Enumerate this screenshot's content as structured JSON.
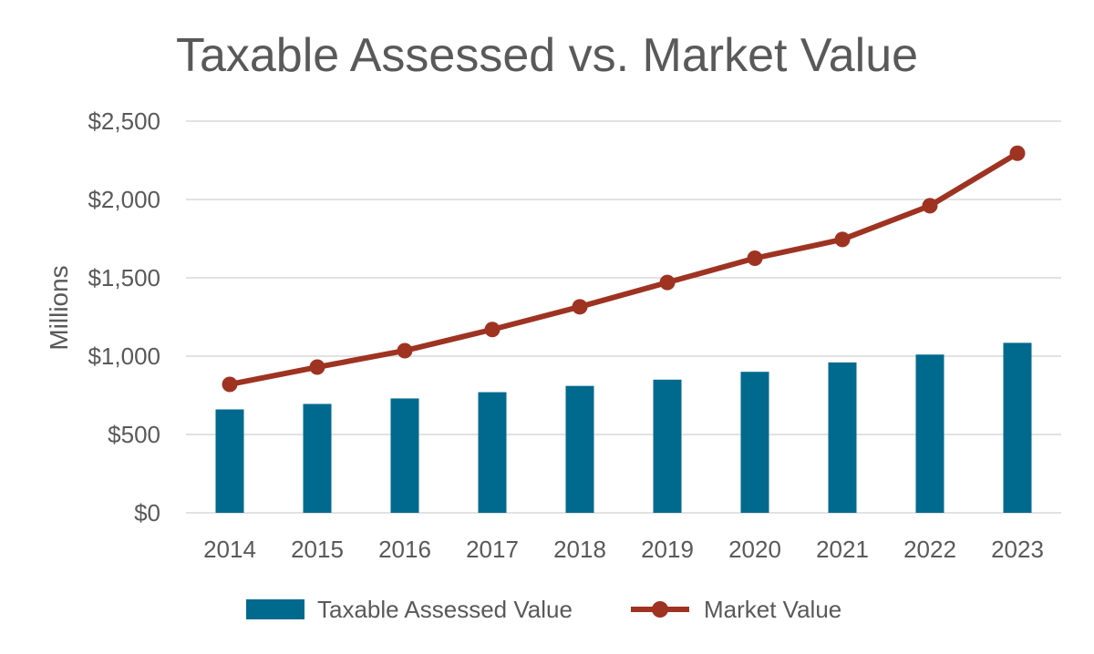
{
  "chart_data": {
    "type": "bar",
    "title": "Taxable Assessed vs. Market Value",
    "xlabel": "",
    "ylabel": "Millions",
    "categories": [
      "2014",
      "2015",
      "2016",
      "2017",
      "2018",
      "2019",
      "2020",
      "2021",
      "2022",
      "2023"
    ],
    "ylim": [
      0,
      2500
    ],
    "yticks": [
      0,
      500,
      1000,
      1500,
      2000,
      2500
    ],
    "ytick_labels": [
      "$0",
      "$500",
      "$1,000",
      "$1,500",
      "$2,000",
      "$2,500"
    ],
    "grid": true,
    "legend_position": "bottom",
    "series": [
      {
        "name": "Taxable Assessed Value",
        "type": "bar",
        "color": "#006a8e",
        "values": [
          660,
          695,
          730,
          770,
          810,
          850,
          900,
          960,
          1010,
          1085
        ]
      },
      {
        "name": "Market Value",
        "type": "line",
        "color": "#9e3322",
        "values": [
          820,
          930,
          1035,
          1170,
          1315,
          1470,
          1625,
          1745,
          1960,
          2295
        ]
      }
    ]
  }
}
